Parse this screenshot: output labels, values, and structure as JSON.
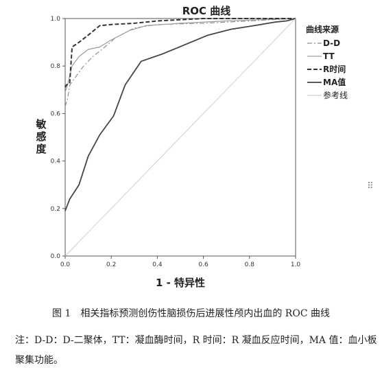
{
  "chart_data": {
    "type": "line",
    "title": "ROC 曲线",
    "xlabel": "1 - 特异性",
    "ylabel": "敏感度",
    "xlim": [
      0.0,
      1.0
    ],
    "ylim": [
      0.0,
      1.0
    ],
    "xticks": [
      "0.0",
      "0.2",
      "0.4",
      "0.6",
      "0.8",
      "1.0"
    ],
    "yticks": [
      "0.0",
      "0.2",
      "0.4",
      "0.6",
      "0.8",
      "1.0"
    ],
    "grid": false,
    "legend": {
      "title": "曲线来源",
      "position": "right"
    },
    "series": [
      {
        "name": "D-D",
        "style": "dash-dot",
        "color": "#8a8a8a",
        "points": [
          [
            0,
            0.63
          ],
          [
            0.01,
            0.66
          ],
          [
            0.02,
            0.72
          ],
          [
            0.05,
            0.76
          ],
          [
            0.08,
            0.8
          ],
          [
            0.12,
            0.84
          ],
          [
            0.16,
            0.87
          ],
          [
            0.22,
            0.92
          ],
          [
            0.3,
            0.96
          ],
          [
            0.4,
            0.975
          ],
          [
            0.6,
            0.98
          ],
          [
            0.8,
            0.99
          ],
          [
            1,
            1
          ]
        ]
      },
      {
        "name": "TT",
        "style": "solid",
        "color": "#9a9a9a",
        "points": [
          [
            0,
            0.69
          ],
          [
            0.01,
            0.72
          ],
          [
            0.03,
            0.8
          ],
          [
            0.06,
            0.84
          ],
          [
            0.1,
            0.87
          ],
          [
            0.15,
            0.88
          ],
          [
            0.2,
            0.91
          ],
          [
            0.28,
            0.95
          ],
          [
            0.35,
            0.97
          ],
          [
            0.5,
            0.98
          ],
          [
            0.7,
            0.99
          ],
          [
            1,
            1
          ]
        ]
      },
      {
        "name": "R时间",
        "style": "dashed",
        "color": "#333333",
        "points": [
          [
            0,
            0.71
          ],
          [
            0.005,
            0.72
          ],
          [
            0.02,
            0.73
          ],
          [
            0.03,
            0.88
          ],
          [
            0.06,
            0.9
          ],
          [
            0.1,
            0.93
          ],
          [
            0.15,
            0.97
          ],
          [
            0.2,
            0.975
          ],
          [
            0.3,
            0.98
          ],
          [
            0.4,
            0.99
          ],
          [
            0.6,
            1.0
          ],
          [
            1,
            1
          ]
        ]
      },
      {
        "name": "MA值",
        "style": "solid",
        "color": "#444444",
        "points": [
          [
            0,
            0.19
          ],
          [
            0.02,
            0.24
          ],
          [
            0.06,
            0.3
          ],
          [
            0.1,
            0.42
          ],
          [
            0.15,
            0.51
          ],
          [
            0.21,
            0.59
          ],
          [
            0.26,
            0.72
          ],
          [
            0.33,
            0.82
          ],
          [
            0.42,
            0.85
          ],
          [
            0.52,
            0.89
          ],
          [
            0.62,
            0.93
          ],
          [
            0.72,
            0.955
          ],
          [
            0.82,
            0.97
          ],
          [
            0.91,
            0.985
          ],
          [
            0.96,
            0.99
          ],
          [
            1,
            1
          ]
        ]
      },
      {
        "name": "参考线",
        "style": "reference",
        "color": "#cfcfcf",
        "points": [
          [
            0,
            0
          ],
          [
            1,
            1
          ]
        ]
      }
    ]
  },
  "caption": {
    "title": "图 1　相关指标预测创伤性脑损伤后进展性颅内出血的 ROC 曲线",
    "note": "注：D-D：D-二聚体，TT：凝血酶时间，R 时间：R 凝血反应时间，MA 值：血小板聚集功能。"
  },
  "drag_handle_glyph": "⠿"
}
